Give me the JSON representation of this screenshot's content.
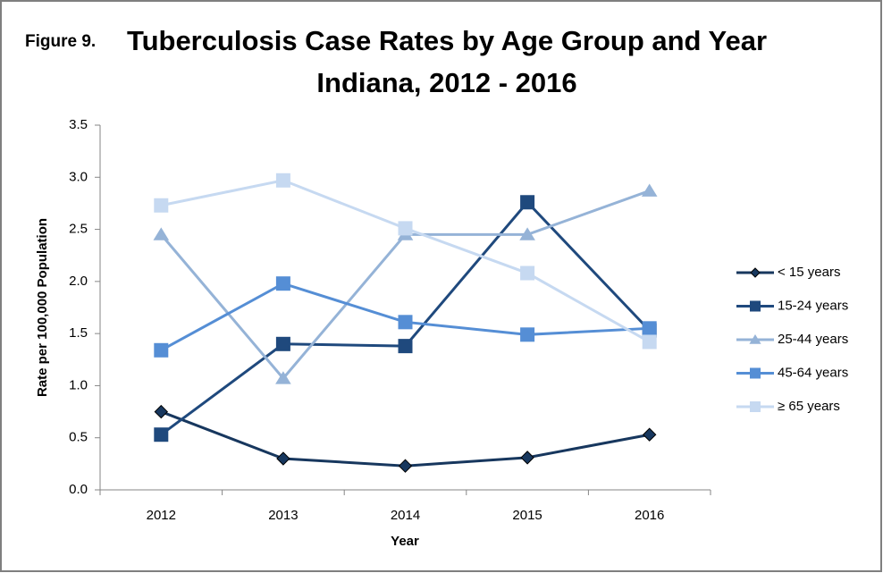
{
  "chart_data": {
    "type": "line",
    "figure_label": "Figure 9.",
    "title": [
      "Tuberculosis Case Rates by Age Group and Year",
      "Indiana, 2012 - 2016"
    ],
    "x_label": "Year",
    "y_label": "Rate per 100,000 Population",
    "categories": [
      "2012",
      "2013",
      "2014",
      "2015",
      "2016"
    ],
    "series": [
      {
        "name": "< 15 years",
        "color": "#17375e",
        "marker": "diamond",
        "values": [
          0.75,
          0.3,
          0.23,
          0.31,
          0.53
        ]
      },
      {
        "name": "15-24 years",
        "color": "#1f497d",
        "marker": "square",
        "values": [
          0.53,
          1.4,
          1.38,
          2.76,
          1.53
        ]
      },
      {
        "name": "25-44 years",
        "color": "#95b3d7",
        "marker": "triangle",
        "values": [
          2.45,
          1.07,
          2.45,
          2.45,
          2.87
        ]
      },
      {
        "name": "45-64 years",
        "color": "#558ed5",
        "marker": "square",
        "values": [
          1.34,
          1.98,
          1.61,
          1.49,
          1.55
        ]
      },
      {
        "name": "≥ 65 years",
        "color": "#c6d9f1",
        "marker": "square",
        "values": [
          2.73,
          2.97,
          2.51,
          2.08,
          1.42
        ]
      }
    ],
    "ylim": [
      0,
      3.5
    ],
    "yticks": [
      {
        "value": 0,
        "label": "0.0"
      },
      0.5,
      {
        "value": 1,
        "label": "1.0"
      },
      1.5,
      {
        "value": 2,
        "label": "2.0"
      },
      2.5,
      {
        "value": 3,
        "label": "3.0"
      },
      3.5
    ],
    "grid": false,
    "legend": "right"
  }
}
